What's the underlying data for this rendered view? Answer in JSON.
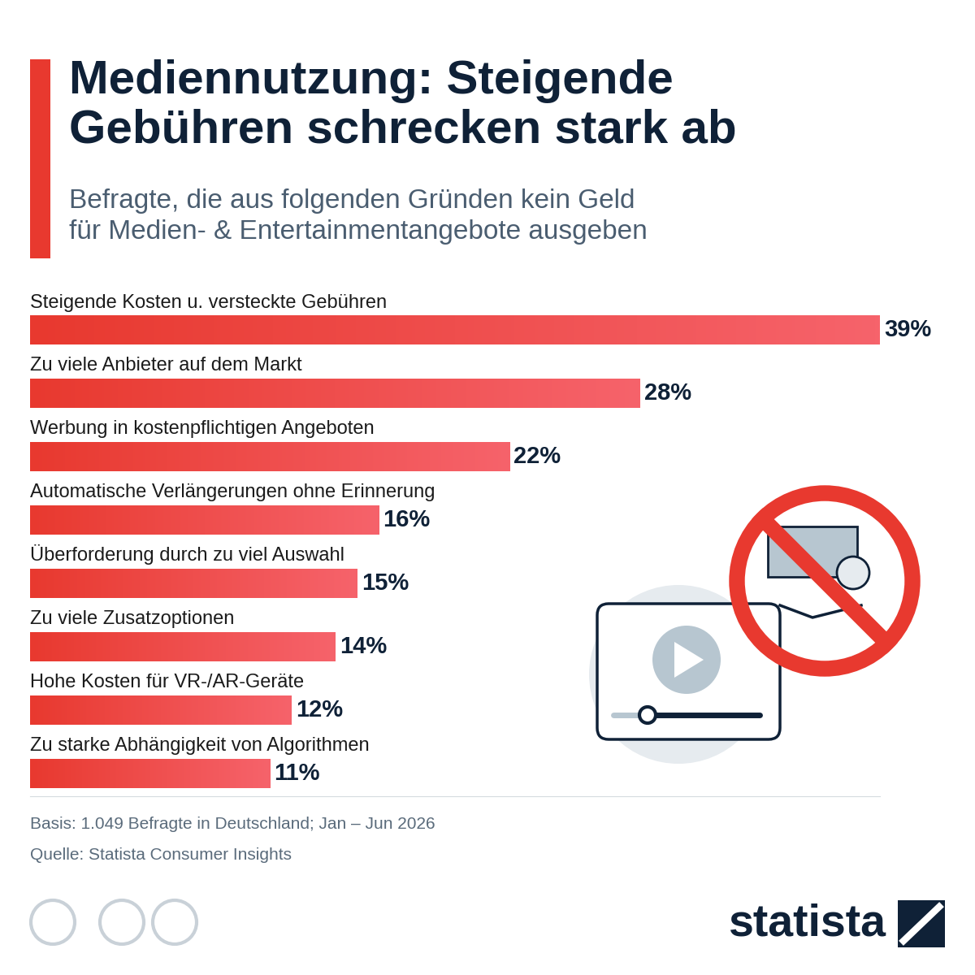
{
  "chart_data": {
    "type": "bar",
    "orientation": "horizontal",
    "title": "Mediennutzung: Steigende\nGebühren schrecken stark ab",
    "subtitle": "Befragte, die aus folgenden Gründen kein Geld\nfür Medien- & Entertainmentangebote ausgeben",
    "categories": [
      "Steigende Kosten u. versteckte Gebühren",
      "Zu viele Anbieter auf dem Markt",
      "Werbung in kostenpflichtigen Angeboten",
      "Automatische Verlängerungen ohne Erinnerung",
      "Überforderung durch zu viel Auswahl",
      "Zu viele Zusatzoptionen",
      "Hohe Kosten für VR-/AR-Geräte",
      "Zu starke Abhängigkeit von Algorithmen"
    ],
    "values": [
      39,
      28,
      22,
      16,
      15,
      14,
      12,
      11
    ],
    "value_labels": [
      "39%",
      "28%",
      "22%",
      "16%",
      "15%",
      "14%",
      "12%",
      "11%"
    ],
    "data_labels": true,
    "color": "#e8392f",
    "xlim": [
      0,
      39
    ],
    "xticks": [],
    "tick_labels": false,
    "grid": false,
    "note": "Basis: 1.049 Befragte in Deutschland; Jan – Jun 2026",
    "source": "Quelle: Statista Consumer Insights",
    "logo": "statista"
  }
}
